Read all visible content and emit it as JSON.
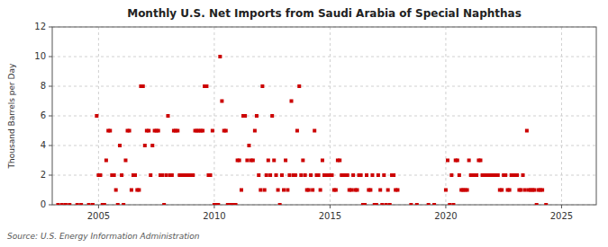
{
  "chart_data": {
    "type": "scatter",
    "title": "Monthly U.S. Net Imports from Saudi Arabia of Special Naphthas",
    "ylabel": "Thousand Barrels per Day",
    "source": "Source: U.S. Energy Information Administration",
    "color": "#cc0000",
    "marker": "square",
    "grid": true,
    "xlim": [
      2003.0,
      2026.5
    ],
    "ylim": [
      0,
      12
    ],
    "xticks": [
      2005,
      2010,
      2015,
      2020,
      2025
    ],
    "yticks": [
      0,
      2,
      4,
      6,
      8,
      10,
      12
    ],
    "x": [
      2003.25,
      2003.42,
      2003.58,
      2003.75,
      2004.08,
      2004.25,
      2004.58,
      2004.75,
      2004.92,
      2005.0,
      2005.08,
      2005.17,
      2005.25,
      2005.33,
      2005.42,
      2005.5,
      2005.58,
      2005.67,
      2005.75,
      2005.83,
      2005.92,
      2006.0,
      2006.08,
      2006.17,
      2006.25,
      2006.33,
      2006.42,
      2006.5,
      2006.58,
      2006.67,
      2006.75,
      2006.83,
      2006.92,
      2007.0,
      2007.08,
      2007.17,
      2007.25,
      2007.33,
      2007.42,
      2007.5,
      2007.58,
      2007.67,
      2007.75,
      2007.83,
      2007.92,
      2008.0,
      2008.08,
      2008.17,
      2008.25,
      2008.33,
      2008.42,
      2008.5,
      2008.58,
      2008.67,
      2008.75,
      2008.83,
      2008.92,
      2009.0,
      2009.08,
      2009.17,
      2009.25,
      2009.33,
      2009.42,
      2009.5,
      2009.58,
      2009.67,
      2009.75,
      2009.83,
      2009.92,
      2010.0,
      2010.08,
      2010.17,
      2010.25,
      2010.33,
      2010.42,
      2010.5,
      2010.58,
      2010.67,
      2010.75,
      2010.83,
      2010.92,
      2011.0,
      2011.08,
      2011.17,
      2011.25,
      2011.33,
      2011.42,
      2011.5,
      2011.58,
      2011.67,
      2011.75,
      2011.83,
      2011.92,
      2012.0,
      2012.08,
      2012.17,
      2012.25,
      2012.33,
      2012.42,
      2012.5,
      2012.58,
      2012.67,
      2012.75,
      2012.83,
      2012.92,
      2013.0,
      2013.08,
      2013.17,
      2013.25,
      2013.33,
      2013.42,
      2013.5,
      2013.58,
      2013.67,
      2013.75,
      2013.83,
      2013.92,
      2014.0,
      2014.08,
      2014.17,
      2014.25,
      2014.33,
      2014.42,
      2014.5,
      2014.58,
      2014.67,
      2014.75,
      2014.83,
      2014.92,
      2015.0,
      2015.08,
      2015.17,
      2015.25,
      2015.33,
      2015.42,
      2015.5,
      2015.58,
      2015.67,
      2015.75,
      2015.83,
      2015.92,
      2016.0,
      2016.08,
      2016.17,
      2016.25,
      2016.33,
      2016.42,
      2016.5,
      2016.58,
      2016.67,
      2016.75,
      2016.83,
      2016.92,
      2017.0,
      2017.08,
      2017.17,
      2017.25,
      2017.33,
      2017.42,
      2017.5,
      2017.58,
      2017.67,
      2017.75,
      2017.83,
      2017.92,
      2018.5,
      2018.75,
      2019.25,
      2019.5,
      2020.0,
      2020.08,
      2020.17,
      2020.25,
      2020.33,
      2020.42,
      2020.5,
      2020.58,
      2020.67,
      2020.75,
      2020.83,
      2020.92,
      2021.0,
      2021.08,
      2021.17,
      2021.25,
      2021.33,
      2021.42,
      2021.5,
      2021.58,
      2021.67,
      2021.75,
      2021.83,
      2021.92,
      2022.0,
      2022.08,
      2022.17,
      2022.25,
      2022.33,
      2022.42,
      2022.5,
      2022.58,
      2022.67,
      2022.75,
      2022.83,
      2022.92,
      2023.0,
      2023.08,
      2023.17,
      2023.25,
      2023.33,
      2023.42,
      2023.5,
      2023.58,
      2023.67,
      2023.75,
      2023.83,
      2023.92,
      2024.0,
      2024.08,
      2024.17,
      2024.33
    ],
    "values": [
      0,
      0,
      0,
      0,
      0,
      0,
      0,
      0,
      6,
      2,
      2,
      0,
      0,
      3,
      5,
      5,
      2,
      2,
      1,
      0,
      4,
      2,
      0,
      3,
      5,
      5,
      1,
      2,
      2,
      1,
      1,
      8,
      8,
      4,
      5,
      5,
      2,
      4,
      5,
      5,
      5,
      2,
      2,
      0,
      2,
      6,
      2,
      2,
      5,
      5,
      5,
      2,
      2,
      2,
      2,
      2,
      2,
      2,
      2,
      5,
      5,
      5,
      5,
      5,
      8,
      8,
      2,
      2,
      5,
      0,
      0,
      0,
      10,
      7,
      5,
      5,
      0,
      0,
      0,
      0,
      0,
      3,
      3,
      1,
      6,
      6,
      3,
      4,
      3,
      3,
      5,
      6,
      2,
      1,
      8,
      1,
      2,
      3,
      2,
      6,
      3,
      2,
      1,
      0,
      2,
      1,
      3,
      1,
      2,
      7,
      2,
      2,
      5,
      8,
      2,
      3,
      2,
      1,
      1,
      2,
      1,
      5,
      2,
      2,
      1,
      3,
      2,
      2,
      2,
      2,
      2,
      1,
      1,
      3,
      3,
      2,
      2,
      2,
      2,
      1,
      1,
      2,
      1,
      1,
      2,
      2,
      0,
      0,
      2,
      1,
      1,
      2,
      0,
      0,
      2,
      1,
      0,
      2,
      0,
      1,
      0,
      2,
      2,
      1,
      1,
      0,
      0,
      0,
      0,
      1,
      3,
      0,
      2,
      0,
      3,
      3,
      2,
      1,
      1,
      1,
      1,
      3,
      2,
      2,
      2,
      2,
      3,
      3,
      2,
      2,
      2,
      2,
      2,
      2,
      2,
      2,
      2,
      1,
      1,
      2,
      2,
      1,
      1,
      2,
      2,
      2,
      2,
      1,
      1,
      2,
      1,
      5,
      1,
      1,
      1,
      1,
      0,
      1,
      1,
      1,
      0
    ]
  }
}
